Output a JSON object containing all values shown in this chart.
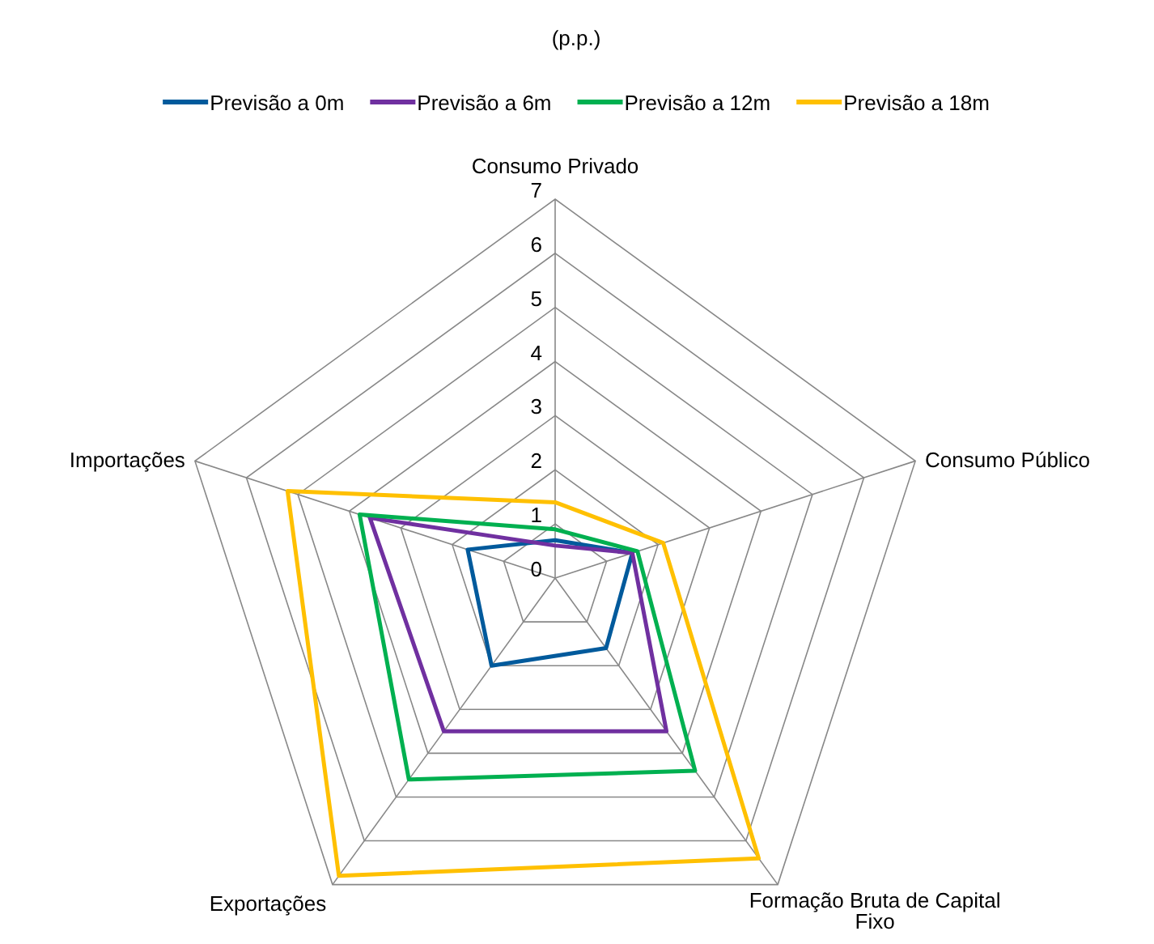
{
  "chart_data": {
    "type": "radar",
    "title": "(p.p.)",
    "categories": [
      "Consumo Privado",
      "Consumo Público",
      "Formação Bruta de Capital Fixo",
      "Exportações",
      "Importações"
    ],
    "ylim": [
      0,
      7
    ],
    "yticks": [
      0,
      1,
      2,
      3,
      4,
      5,
      6,
      7
    ],
    "legend": "top",
    "grid": true,
    "series": [
      {
        "name": "Previsão a 0m",
        "color": "#005a9c",
        "values": [
          0.7,
          1.5,
          1.6,
          2.0,
          1.7
        ]
      },
      {
        "name": "Previsão a 6m",
        "color": "#7030a0",
        "values": [
          0.6,
          1.5,
          3.5,
          3.5,
          3.6
        ]
      },
      {
        "name": "Previsão a 12m",
        "color": "#00b050",
        "values": [
          0.9,
          1.6,
          4.4,
          4.6,
          3.8
        ]
      },
      {
        "name": "Previsão a 18m",
        "color": "#ffc000",
        "values": [
          1.4,
          2.1,
          6.4,
          6.8,
          5.2
        ]
      }
    ]
  }
}
